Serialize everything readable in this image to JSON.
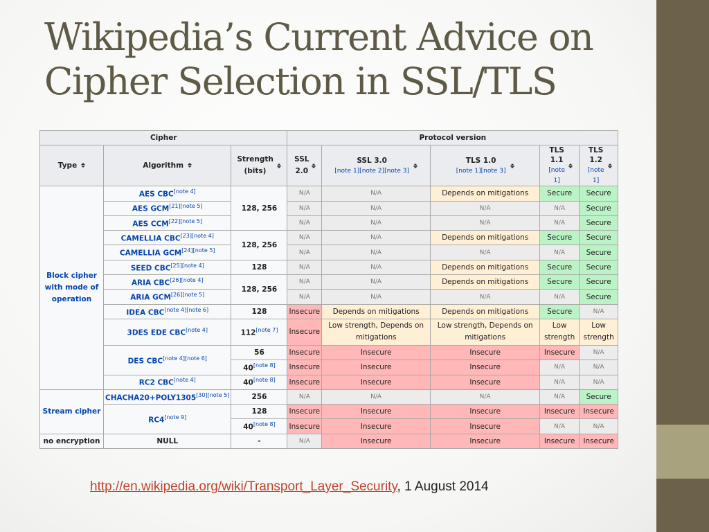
{
  "slide": {
    "title": "Wikipedia’s Current Advice on Cipher Selection in SSL/TLS",
    "caption_link": "http://en.wikipedia.org/wiki/Transport_Layer_Security",
    "caption_suffix": ", 1 August 2014"
  },
  "table": {
    "group_headers": {
      "cipher": "Cipher",
      "protocol": "Protocol version"
    },
    "col_headers": {
      "type": "Type",
      "algorithm": "Algorithm",
      "strength": "Strength (bits)",
      "ssl2": "SSL 2.0",
      "ssl3": "SSL 3.0",
      "ssl3_notes": "[note 1][note 2][note 3]",
      "tls10": "TLS 1.0",
      "tls10_notes": "[note 1][note 3]",
      "tls11": "TLS 1.1",
      "tls11_notes": "[note 1]",
      "tls12": "TLS 1.2",
      "tls12_notes": "[note 1]"
    },
    "types": {
      "block": "Block cipher with mode of operation",
      "stream": "Stream cipher",
      "none": "no encryption"
    },
    "strengths": {
      "s128_256": "128, 256",
      "s128": "128",
      "s112": "112",
      "s112_note": "[note 7]",
      "s56": "56",
      "s40": "40",
      "s40_note": "[note 8]",
      "s256": "256",
      "dash": "-"
    },
    "values": {
      "na": "N/A",
      "secure": "Secure",
      "insecure": "Insecure",
      "depends": "Depends on mitigations",
      "low_depends": "Low strength, Depends on mitigations",
      "low": "Low strength"
    },
    "algorithms": {
      "aes_cbc": "AES CBC",
      "aes_cbc_note": "[note 4]",
      "aes_gcm": "AES GCM",
      "aes_gcm_note": "[21][note 5]",
      "aes_ccm": "AES CCM",
      "aes_ccm_note": "[22][note 5]",
      "camellia_cbc": "CAMELLIA CBC",
      "camellia_cbc_note": "[23][note 4]",
      "camellia_gcm": "CAMELLIA GCM",
      "camellia_gcm_note": "[24][note 5]",
      "seed_cbc": "SEED CBC",
      "seed_cbc_note": "[25][note 4]",
      "aria_cbc": "ARIA CBC",
      "aria_cbc_note": "[26][note 4]",
      "aria_gcm": "ARIA GCM",
      "aria_gcm_note": "[26][note 5]",
      "idea_cbc": "IDEA CBC",
      "idea_cbc_note": "[note 4][note 6]",
      "tdes_cbc": "3DES EDE CBC",
      "tdes_cbc_note": "[note 4]",
      "des_cbc": "DES CBC",
      "des_cbc_note": "[note 4][note 6]",
      "rc2_cbc": "RC2 CBC",
      "rc2_cbc_note": "[note 4]",
      "chacha": "CHACHA20+POLY1305",
      "chacha_note": "[30][note 5]",
      "rc4": "RC4",
      "rc4_note": "[note 9]",
      "null": "NULL"
    }
  },
  "colors": {
    "na": "#ececec",
    "secure": "#bbf3c7",
    "insecure": "#ffb7b7",
    "depends": "#ffefd5",
    "accent": "#6b6249",
    "link": "#c0442d"
  }
}
